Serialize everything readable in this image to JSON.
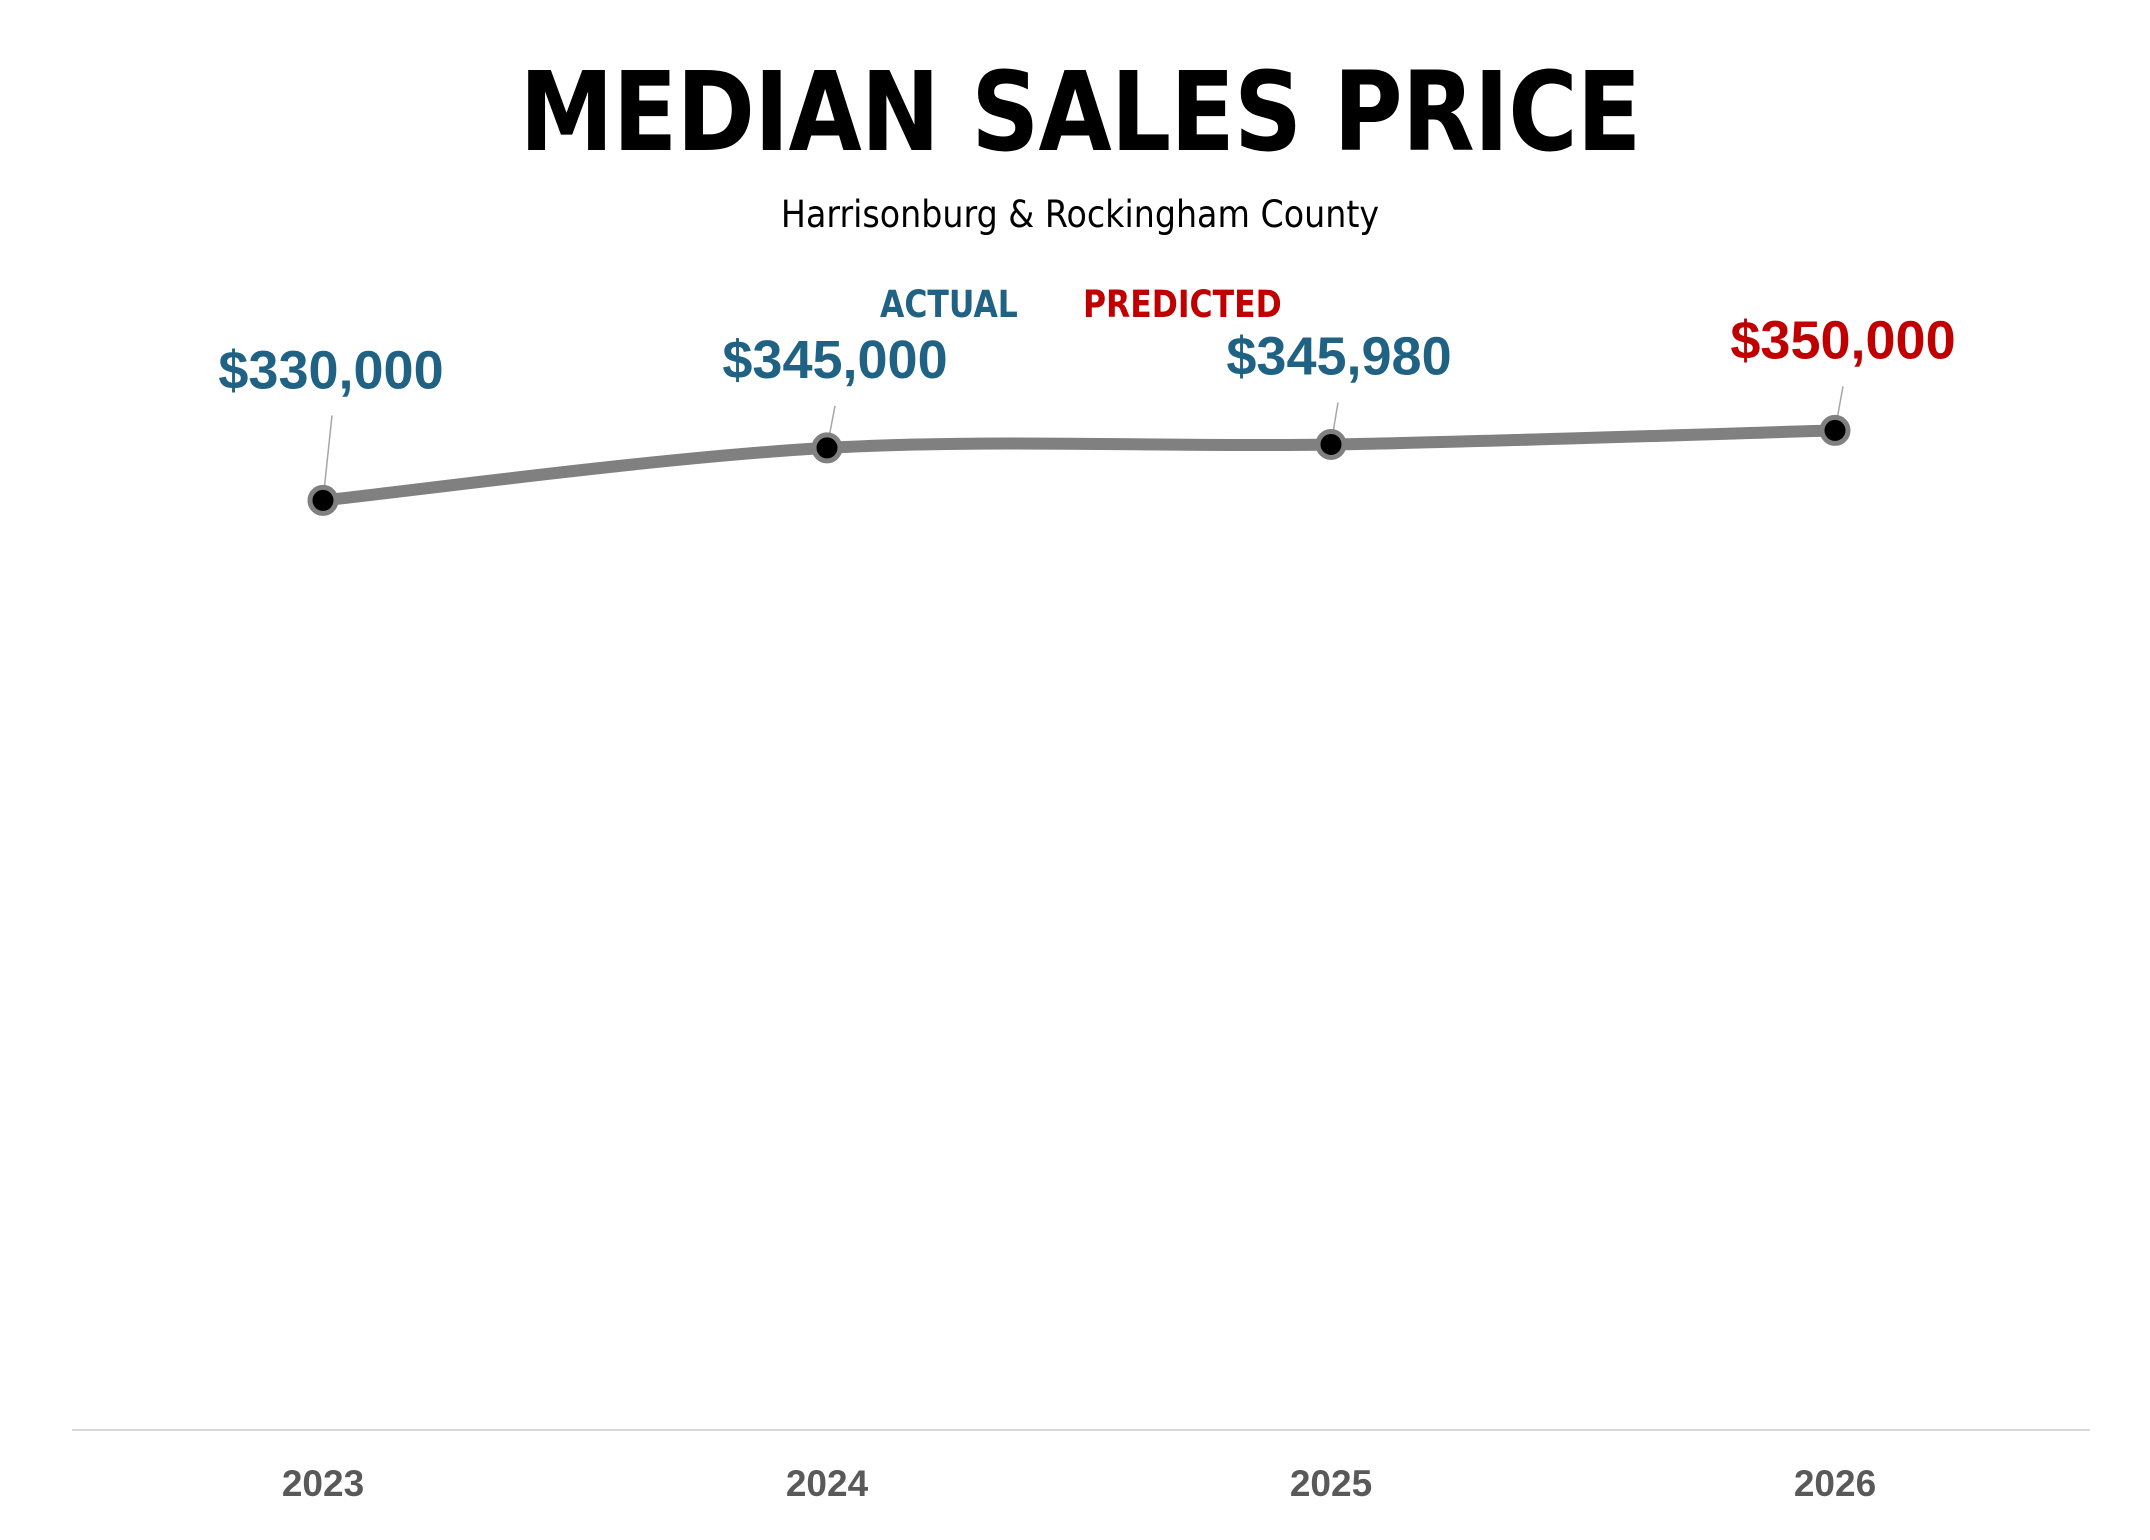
{
  "chart_data": {
    "type": "line",
    "title": "MEDIAN SALES PRICE",
    "subtitle": "Harrisonburg & Rockingham County",
    "legend": [
      {
        "name": "ACTUAL",
        "color": "#1F6283"
      },
      {
        "name": "PREDICTED",
        "color": "#C00000"
      }
    ],
    "categories": [
      "2023",
      "2024",
      "2025",
      "2026"
    ],
    "values": [
      330000,
      345000,
      345980,
      350000
    ],
    "labels": [
      "$330,000",
      "$345,000",
      "$345,980",
      "$350,000"
    ],
    "point_status": [
      "actual",
      "actual",
      "actual",
      "predicted"
    ],
    "xlabel": "",
    "ylabel": "",
    "ylim": [
      270000,
      360000
    ],
    "grid": false,
    "colors": {
      "line": "#808080",
      "marker_fill": "#000000",
      "marker_border": "#808080",
      "axis": "#D9D9D9",
      "tick_text": "#595959"
    }
  }
}
